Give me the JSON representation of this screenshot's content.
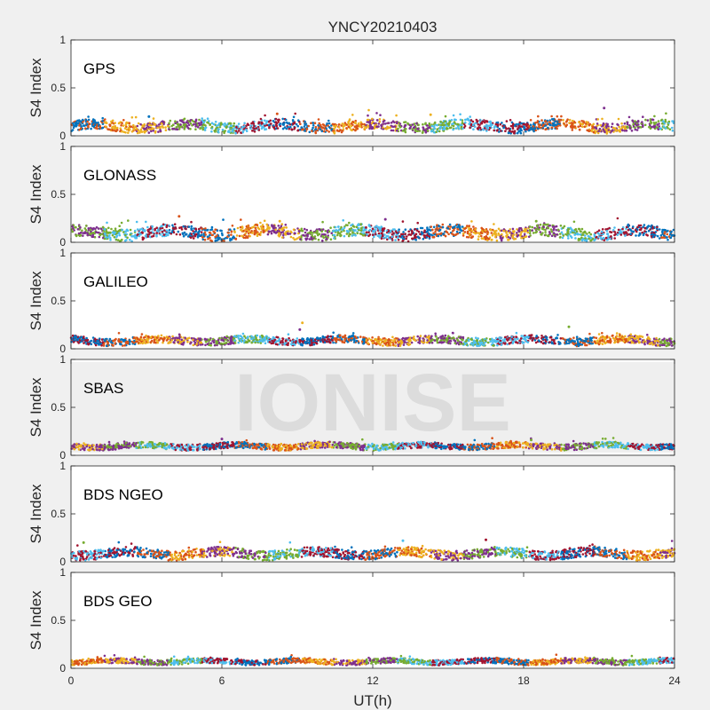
{
  "chart_data": {
    "type": "scatter",
    "title": "YNCY20210403",
    "xlabel": "UT(h)",
    "ylabel": "S4 Index",
    "xlim": [
      0,
      24
    ],
    "ylim": [
      0,
      1
    ],
    "x_ticks": [
      0,
      6,
      12,
      18,
      24
    ],
    "y_ticks": [
      0,
      0.5,
      1
    ],
    "x_tick_labels": [
      "0",
      "6",
      "12",
      "18",
      "24"
    ],
    "y_tick_labels": [
      "0",
      "0.5",
      "1"
    ],
    "watermark": "IONISE",
    "watermark_panel": "SBAS",
    "grid": false,
    "series_colors": [
      "#0072bd",
      "#d95319",
      "#edb120",
      "#7e2f8e",
      "#77ac30",
      "#4dbeee",
      "#a2142f"
    ],
    "panels": [
      {
        "name": "GPS",
        "typical_s4_range": [
          0.04,
          0.16
        ],
        "notable_points": [
          {
            "x": 3.1,
            "y": 0.2
          },
          {
            "x": 8.2,
            "y": 0.23
          },
          {
            "x": 14.3,
            "y": 0.22
          },
          {
            "x": 21.2,
            "y": 0.29
          }
        ]
      },
      {
        "name": "GLONASS",
        "typical_s4_range": [
          0.03,
          0.17
        ],
        "notable_points": [
          {
            "x": 4.3,
            "y": 0.27
          },
          {
            "x": 8.3,
            "y": 0.22
          },
          {
            "x": 12.5,
            "y": 0.24
          },
          {
            "x": 18.5,
            "y": 0.22
          }
        ]
      },
      {
        "name": "GALILEO",
        "typical_s4_range": [
          0.04,
          0.13
        ],
        "notable_points": [
          {
            "x": 9.2,
            "y": 0.27
          },
          {
            "x": 9.1,
            "y": 0.2
          },
          {
            "x": 19.8,
            "y": 0.23
          }
        ]
      },
      {
        "name": "SBAS",
        "typical_s4_range": [
          0.06,
          0.13
        ],
        "notable_points": [
          {
            "x": 6.0,
            "y": 0.17
          },
          {
            "x": 18.3,
            "y": 0.16
          }
        ]
      },
      {
        "name": "BDS NGEO",
        "typical_s4_range": [
          0.03,
          0.14
        ],
        "notable_points": [
          {
            "x": 0.5,
            "y": 0.2
          },
          {
            "x": 13.2,
            "y": 0.22
          },
          {
            "x": 16.5,
            "y": 0.23
          }
        ]
      },
      {
        "name": "BDS GEO",
        "typical_s4_range": [
          0.04,
          0.1
        ],
        "notable_points": []
      }
    ]
  }
}
